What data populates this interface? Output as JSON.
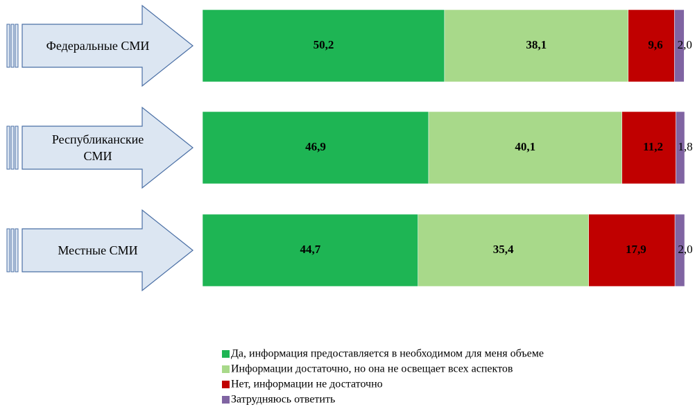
{
  "chart_data": {
    "type": "stacked-bar-horizontal",
    "categories": [
      "Федеральные СМИ",
      "Республиканские СМИ",
      "Местные СМИ"
    ],
    "xlim": [
      0,
      100
    ],
    "series": [
      {
        "name": "Да, информация предоставляется в необходимом для меня объеме",
        "color": "#1eb554",
        "values": [
          50.2,
          46.9,
          44.7
        ],
        "value_labels": [
          "50,2",
          "46,9",
          "44,7"
        ]
      },
      {
        "name": "Информации достаточно, но она не освещает всех аспектов",
        "color": "#a8d98a",
        "values": [
          38.1,
          40.1,
          35.4
        ],
        "value_labels": [
          "38,1",
          "40,1",
          "35,4"
        ]
      },
      {
        "name": "Нет, информации не достаточно",
        "color": "#c00000",
        "values": [
          9.6,
          11.2,
          17.9
        ],
        "value_labels": [
          "9,6",
          "11,2",
          "17,9"
        ]
      },
      {
        "name": "Затрудняюсь ответить",
        "color": "#8064a2",
        "values": [
          2.0,
          1.8,
          2.0
        ],
        "value_labels": [
          "2,0",
          "1,8",
          "2,0"
        ]
      }
    ]
  }
}
